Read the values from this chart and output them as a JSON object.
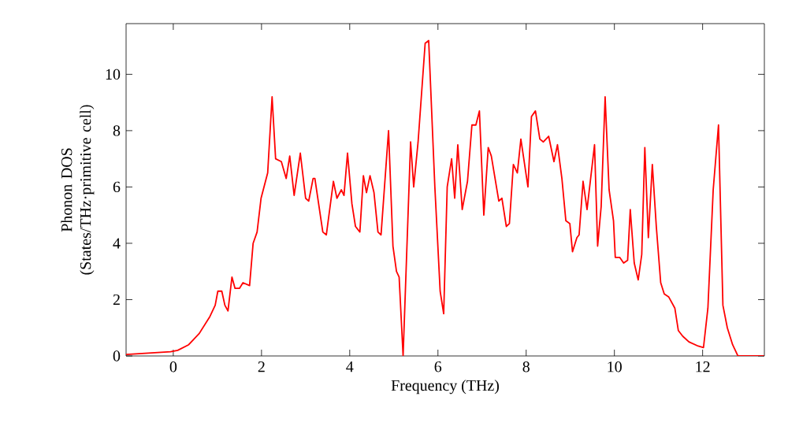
{
  "chart_data": {
    "type": "line",
    "xlabel": "Frequency (THz)",
    "ylabel": "Phonon DOS (States/THz·primitive cell)",
    "xlim": [
      -1.07,
      13.4
    ],
    "ylim": [
      0,
      11.8
    ],
    "xticks": [
      0,
      2,
      4,
      6,
      8,
      10,
      12
    ],
    "yticks": [
      0,
      2,
      4,
      6,
      8,
      10
    ],
    "series": [
      {
        "color": "#ff0000",
        "x": [
          -1.07,
          -0.06,
          0.1,
          0.35,
          0.59,
          0.83,
          0.95,
          1.01,
          1.1,
          1.17,
          1.24,
          1.33,
          1.4,
          1.5,
          1.58,
          1.73,
          1.81,
          1.9,
          1.99,
          2.14,
          2.24,
          2.32,
          2.45,
          2.56,
          2.64,
          2.74,
          2.88,
          3.0,
          3.07,
          3.17,
          3.21,
          3.39,
          3.47,
          3.63,
          3.71,
          3.81,
          3.87,
          3.95,
          4.05,
          4.13,
          4.23,
          4.31,
          4.38,
          4.46,
          4.55,
          4.64,
          4.71,
          4.88,
          4.98,
          5.06,
          5.12,
          5.21,
          5.38,
          5.45,
          5.55,
          5.71,
          5.79,
          5.93,
          6.05,
          6.13,
          6.21,
          6.31,
          6.38,
          6.45,
          6.55,
          6.67,
          6.77,
          6.86,
          6.94,
          7.04,
          7.14,
          7.21,
          7.38,
          7.45,
          7.55,
          7.62,
          7.71,
          7.8,
          7.88,
          8.04,
          8.12,
          8.21,
          8.31,
          8.39,
          8.51,
          8.63,
          8.71,
          8.81,
          8.9,
          8.99,
          9.05,
          9.15,
          9.2,
          9.29,
          9.38,
          9.55,
          9.62,
          9.7,
          9.79,
          9.88,
          9.98,
          10.02,
          10.12,
          10.21,
          10.3,
          10.36,
          10.45,
          10.54,
          10.62,
          10.69,
          10.77,
          10.86,
          10.95,
          11.05,
          11.13,
          11.23,
          11.37,
          11.45,
          11.55,
          11.69,
          11.9,
          12.02,
          12.12,
          12.24,
          12.36,
          12.46,
          12.56,
          12.68,
          12.8,
          13.39
        ],
        "values": [
          0.05,
          0.15,
          0.2,
          0.4,
          0.8,
          1.4,
          1.8,
          2.3,
          2.3,
          1.8,
          1.6,
          2.8,
          2.4,
          2.4,
          2.6,
          2.5,
          4.0,
          4.4,
          5.6,
          6.5,
          9.2,
          7.0,
          6.9,
          6.3,
          7.1,
          5.7,
          7.2,
          5.6,
          5.5,
          6.3,
          6.3,
          4.4,
          4.3,
          6.2,
          5.6,
          5.9,
          5.7,
          7.2,
          5.4,
          4.6,
          4.4,
          6.4,
          5.8,
          6.4,
          5.8,
          4.4,
          4.3,
          8.0,
          3.9,
          3.0,
          2.8,
          0.0,
          7.6,
          6.0,
          7.6,
          11.1,
          11.2,
          6.0,
          2.3,
          1.5,
          6.0,
          7.0,
          5.6,
          7.5,
          5.2,
          6.2,
          8.2,
          8.2,
          8.7,
          5.0,
          7.4,
          7.1,
          5.5,
          5.6,
          4.6,
          4.7,
          6.8,
          6.5,
          7.7,
          6.0,
          8.5,
          8.7,
          7.7,
          7.6,
          7.8,
          6.9,
          7.5,
          6.3,
          4.8,
          4.7,
          3.7,
          4.2,
          4.3,
          6.2,
          5.2,
          7.5,
          3.9,
          5.3,
          9.2,
          5.9,
          4.8,
          3.5,
          3.5,
          3.3,
          3.4,
          5.2,
          3.3,
          2.7,
          3.6,
          7.4,
          4.2,
          6.8,
          4.6,
          2.6,
          2.2,
          2.1,
          1.7,
          0.9,
          0.7,
          0.5,
          0.35,
          0.3,
          1.7,
          5.9,
          8.2,
          1.8,
          1.0,
          0.4,
          0.0,
          0.0
        ]
      }
    ]
  }
}
